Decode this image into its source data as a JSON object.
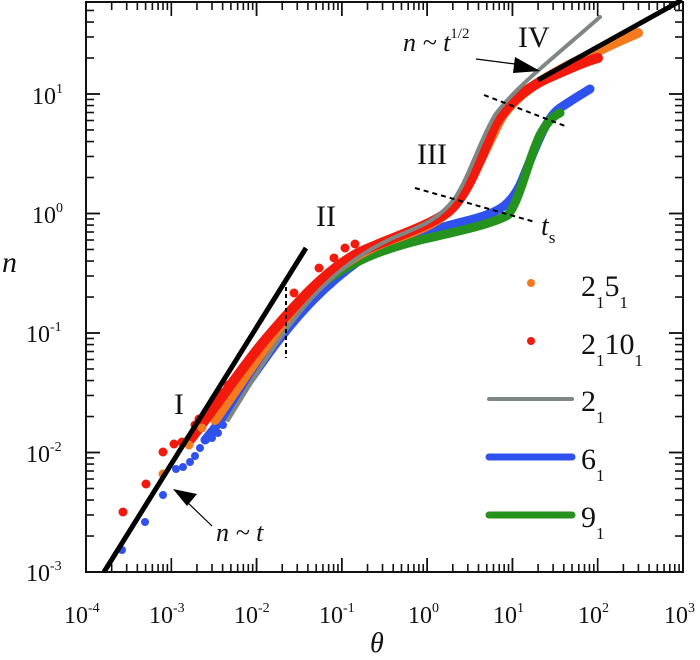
{
  "chart_data": {
    "type": "line",
    "title": "",
    "xlabel": "θ",
    "ylabel": "n",
    "xscale": "log",
    "yscale": "log",
    "xlim": [
      0.0001,
      1000
    ],
    "ylim": [
      0.001,
      60
    ],
    "x_ticks": [
      "10^-4",
      "10^-3",
      "10^-2",
      "10^-1",
      "10^0",
      "10^1",
      "10^2",
      "10^3"
    ],
    "y_ticks": [
      "10^-3",
      "10^-2",
      "10^-1",
      "10^0",
      "10^1"
    ],
    "grid": false,
    "legend_position": "lower right (inside)",
    "legend": [
      {
        "label": "2_1 5_1",
        "base": "2",
        "sub1": "1",
        "base2": "5",
        "sub2": "1",
        "style": "dots",
        "color": "#f47a20"
      },
      {
        "label": "2_1 10_1",
        "base": "2",
        "sub1": "1",
        "base2": "10",
        "sub2": "1",
        "style": "dots",
        "color": "#f11a0c"
      },
      {
        "label": "2_1",
        "base": "2",
        "sub1": "1",
        "style": "thin-line",
        "color": "#7f8784"
      },
      {
        "label": "6_1",
        "base": "6",
        "sub1": "1",
        "style": "thick-line",
        "color": "#2f52ee"
      },
      {
        "label": "9_1",
        "base": "9",
        "sub1": "1",
        "style": "thick-line",
        "color": "#24921c"
      }
    ],
    "series": [
      {
        "name": "2_1 5_1",
        "color": "#f47a20",
        "style": "dots",
        "x": [
          0.0008,
          0.002,
          0.003,
          0.01,
          0.03,
          0.1,
          0.3,
          1,
          3,
          10,
          30,
          100,
          300
        ],
        "y": [
          0.0068,
          0.011,
          0.016,
          0.06,
          0.17,
          0.45,
          0.8,
          1.2,
          2.8,
          8,
          16,
          24,
          33
        ]
      },
      {
        "name": "2_1 10_1",
        "color": "#f11a0c",
        "style": "dots",
        "x": [
          0.00028,
          0.0006,
          0.0008,
          0.0012,
          0.002,
          0.003,
          0.005,
          0.01,
          0.03,
          0.1,
          0.3,
          1,
          3,
          10,
          30,
          100
        ],
        "y": [
          0.0032,
          0.0055,
          0.0102,
          0.012,
          0.014,
          0.02,
          0.032,
          0.065,
          0.18,
          0.48,
          0.8,
          1.15,
          2.4,
          7.5,
          14,
          19
        ]
      },
      {
        "name": "2_1",
        "color": "#7f8784",
        "style": "line",
        "x": [
          0.005,
          0.01,
          0.03,
          0.1,
          0.3,
          1,
          2,
          4,
          8,
          20,
          100
        ],
        "y": [
          0.028,
          0.055,
          0.15,
          0.42,
          0.75,
          1.25,
          2.2,
          5,
          10,
          18,
          45
        ]
      },
      {
        "name": "6_1",
        "color": "#2f52ee",
        "style": "line",
        "x": [
          0.00028,
          0.0005,
          0.001,
          0.003,
          0.01,
          0.03,
          0.1,
          0.3,
          1,
          3,
          8,
          15,
          30,
          90
        ],
        "y": [
          0.0015,
          0.0024,
          0.0072,
          0.013,
          0.05,
          0.13,
          0.33,
          0.55,
          0.72,
          0.9,
          1.3,
          3.5,
          6.5,
          11
        ]
      },
      {
        "name": "9_1",
        "color": "#24921c",
        "style": "line",
        "x": [
          0.01,
          0.03,
          0.1,
          0.3,
          1,
          3,
          10,
          15,
          25,
          35
        ],
        "y": [
          0.045,
          0.11,
          0.27,
          0.45,
          0.6,
          0.75,
          0.95,
          1.6,
          4.5,
          6.5
        ]
      }
    ],
    "reference_lines": [
      {
        "label": "n ~ t",
        "slope": 1,
        "x": [
          0.00015,
          0.028
        ],
        "y": [
          0.001,
          0.32
        ]
      },
      {
        "label": "n ~ t^1/2",
        "slope": 0.5,
        "x": [
          20,
          480
        ],
        "y": [
          14,
          62
        ]
      }
    ],
    "regions": [
      "I",
      "II",
      "III",
      "IV"
    ],
    "annotations": [
      "n ~ t",
      "n ~ t^1/2",
      "t_s",
      "I",
      "II",
      "III",
      "IV"
    ]
  },
  "labels": {
    "xlabel": "θ",
    "ylabel": "n",
    "x_ticks": [
      {
        "base": "10",
        "exp": "-4"
      },
      {
        "base": "10",
        "exp": "-3"
      },
      {
        "base": "10",
        "exp": "-2"
      },
      {
        "base": "10",
        "exp": "-1"
      },
      {
        "base": "10",
        "exp": "0"
      },
      {
        "base": "10",
        "exp": "1"
      },
      {
        "base": "10",
        "exp": "2"
      },
      {
        "base": "10",
        "exp": "3"
      }
    ],
    "y_ticks": [
      {
        "base": "10",
        "exp": "-3"
      },
      {
        "base": "10",
        "exp": "-2"
      },
      {
        "base": "10",
        "exp": "-1"
      },
      {
        "base": "10",
        "exp": "0"
      },
      {
        "base": "10",
        "exp": "1"
      }
    ],
    "region_I": "I",
    "region_II": "II",
    "region_III": "III",
    "region_IV": "IV",
    "ann_linear_n": "n",
    "ann_linear_rest": " ~ t",
    "ann_sqrt_n": "n",
    "ann_sqrt_rest": " ~ t",
    "ann_sqrt_exp": "1/2",
    "ann_ts": "t",
    "ann_ts_sub": "s"
  }
}
